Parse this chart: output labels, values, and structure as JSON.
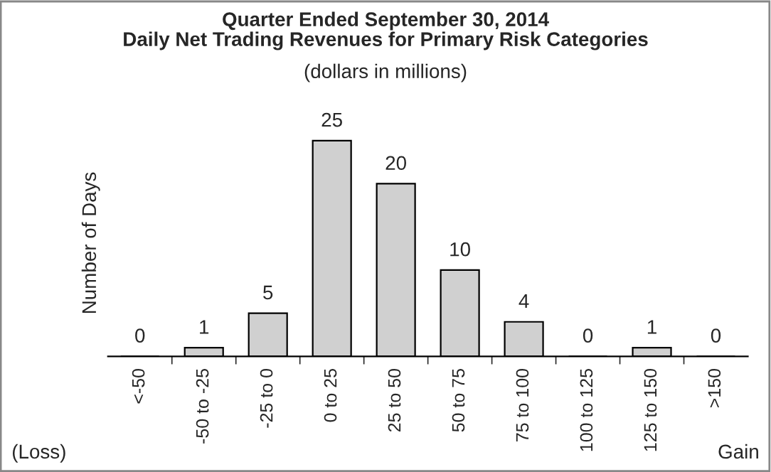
{
  "chart_data": {
    "type": "bar",
    "title": "Quarter Ended September 30, 2014\nDaily Net Trading Revenues for Primary Risk Categories",
    "subtitle": "(dollars in millions)",
    "ylabel": "Number of Days",
    "categories": [
      "<-50",
      "-50 to -25",
      "-25 to 0",
      "0 to 25",
      "25 to 50",
      "50 to 75",
      "75 to 100",
      "100 to 125",
      "125 to 150",
      ">150"
    ],
    "values": [
      0,
      1,
      5,
      25,
      20,
      10,
      4,
      0,
      1,
      0
    ],
    "color": "#d0d0d0",
    "data_labels": true,
    "tick_labels": "x",
    "grid": false,
    "legend": false,
    "annotations": [
      "(Loss)",
      "Gain"
    ]
  }
}
